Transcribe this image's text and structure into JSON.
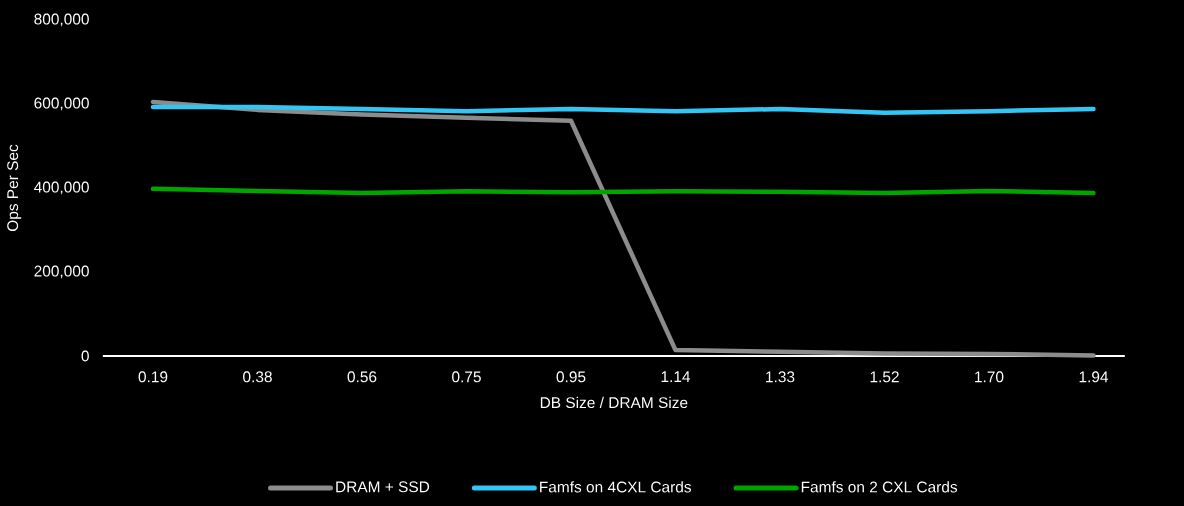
{
  "chart_data": {
    "type": "line",
    "xlabel": "DB Size / DRAM Size",
    "ylabel": "Ops Per Sec",
    "categories": [
      "0.19",
      "0.38",
      "0.56",
      "0.75",
      "0.95",
      "1.14",
      "1.33",
      "1.52",
      "1.70",
      "1.94"
    ],
    "series": [
      {
        "name": "DRAM + SSD",
        "color": "#8c8c8c",
        "values": [
          605000,
          586000,
          575000,
          567000,
          560000,
          14000,
          10000,
          6000,
          5000,
          1000
        ]
      },
      {
        "name": "Famfs on 4CXL Cards",
        "color": "#33c6f4",
        "values": [
          593000,
          593000,
          588000,
          583000,
          588000,
          583000,
          588000,
          579000,
          583000,
          588000
        ]
      },
      {
        "name": "Famfs on 2 CXL Cards",
        "color": "#00a500",
        "values": [
          398000,
          393000,
          388000,
          392000,
          390000,
          392000,
          391000,
          388000,
          393000,
          388000
        ]
      }
    ],
    "ylim": [
      0,
      800000
    ],
    "yticks": [
      {
        "value": 0,
        "label": "0"
      },
      {
        "value": 200000,
        "label": "200,000"
      },
      {
        "value": 400000,
        "label": "400,000"
      },
      {
        "value": 600000,
        "label": "600,000"
      },
      {
        "value": 800000,
        "label": "800,000"
      }
    ],
    "grid": false,
    "legend": "bottom",
    "marker": "none",
    "line_style": "solid"
  }
}
